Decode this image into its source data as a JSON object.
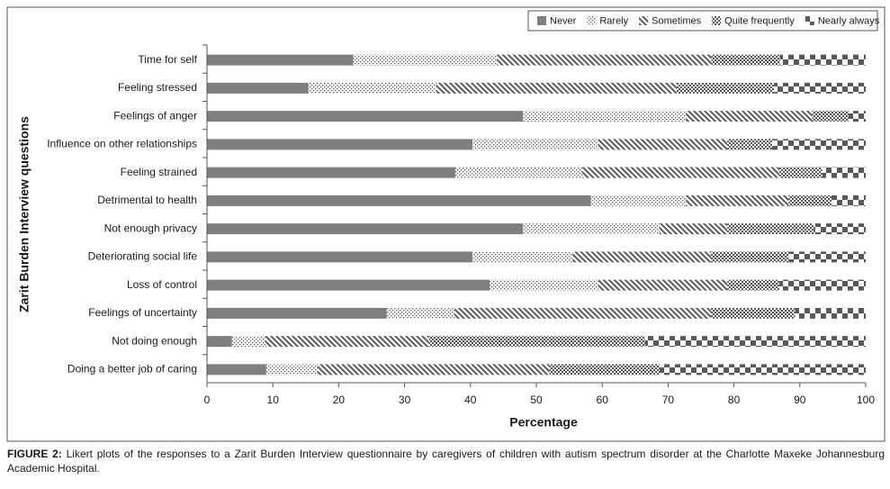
{
  "chart_data": {
    "type": "stacked-bar-horizontal",
    "xlabel": "Percentage",
    "ylabel": "Zarit Burden Interview questions",
    "categories": [
      "Time for self",
      "Feeling stressed",
      "Feelings of anger",
      "Influence on other relationships",
      "Feeling strained",
      "Detrimental to health",
      "Not enough privacy",
      "Deteriorating social life",
      "Loss of control",
      "Feelings of uncertainty",
      "Not doing enough",
      "Doing a better job of caring"
    ],
    "series": [
      {
        "name": "Never",
        "color": "#7f7f7f",
        "values": [
          22.2,
          15.4,
          48.0,
          40.3,
          37.7,
          58.3,
          48.0,
          40.3,
          42.9,
          27.3,
          3.8,
          9.0
        ]
      },
      {
        "name": "Rarely",
        "color": "#595959",
        "values": [
          21.8,
          19.4,
          24.7,
          19.1,
          19.3,
          14.4,
          20.7,
          15.2,
          16.5,
          10.3,
          5.1,
          7.8
        ]
      },
      {
        "name": "Sometimes",
        "color": "#595959",
        "values": [
          32.6,
          36.5,
          19.2,
          19.6,
          29.9,
          15.6,
          10.3,
          21.0,
          19.6,
          38.9,
          24.8,
          35.2
        ]
      },
      {
        "name": "Quite frequently",
        "color": "#595959",
        "values": [
          10.4,
          14.8,
          5.5,
          6.8,
          6.5,
          6.5,
          13.1,
          11.8,
          7.9,
          12.8,
          32.8,
          16.7
        ]
      },
      {
        "name": "Nearly always",
        "color": "#595959",
        "values": [
          13.0,
          13.9,
          2.6,
          14.2,
          6.6,
          5.2,
          7.9,
          11.7,
          13.1,
          10.7,
          33.5,
          31.3
        ]
      }
    ],
    "xlim": [
      0,
      100
    ],
    "xticks": [
      0,
      10,
      20,
      30,
      40,
      50,
      60,
      70,
      80,
      90,
      100
    ],
    "legend": "top-right",
    "caption_label": "FIGURE 2:",
    "caption": "Likert plots of the responses to a Zarit Burden Interview questionnaire by caregivers of children with autism spectrum disorder at the Charlotte Maxeke Johannesburg Academic Hospital."
  }
}
